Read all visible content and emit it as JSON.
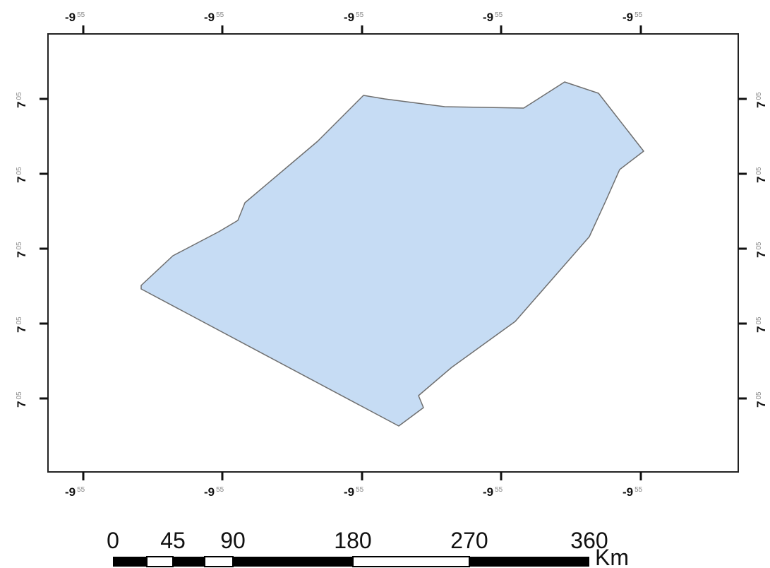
{
  "map": {
    "frame": "rectangle",
    "top_ticks": [
      {
        "main": "-9",
        "sup": "55"
      },
      {
        "main": "-9",
        "sup": "55"
      },
      {
        "main": "-9",
        "sup": "55"
      },
      {
        "main": "-9",
        "sup": "55"
      },
      {
        "main": "-9",
        "sup": "55"
      }
    ],
    "bottom_ticks": [
      {
        "main": "-9",
        "sup": "55"
      },
      {
        "main": "-9",
        "sup": "55"
      },
      {
        "main": "-9",
        "sup": "55"
      },
      {
        "main": "-9",
        "sup": "55"
      },
      {
        "main": "-9",
        "sup": "55"
      }
    ],
    "left_ticks": [
      {
        "main": "7",
        "sup": "05"
      },
      {
        "main": "7",
        "sup": "05"
      },
      {
        "main": "7",
        "sup": "05"
      },
      {
        "main": "7",
        "sup": "05"
      },
      {
        "main": "7",
        "sup": "05"
      }
    ],
    "right_ticks": [
      {
        "main": "7",
        "sup": "05"
      },
      {
        "main": "7",
        "sup": "05"
      },
      {
        "main": "7",
        "sup": "05"
      },
      {
        "main": "7",
        "sup": "05"
      },
      {
        "main": "7",
        "sup": "05"
      }
    ],
    "region": {
      "fill": "#c6dcf4",
      "stroke": "#6f6f6f"
    }
  },
  "scale_bar": {
    "labels": [
      "0",
      "45",
      "90",
      "180",
      "270",
      "360"
    ],
    "unit": "Km"
  }
}
